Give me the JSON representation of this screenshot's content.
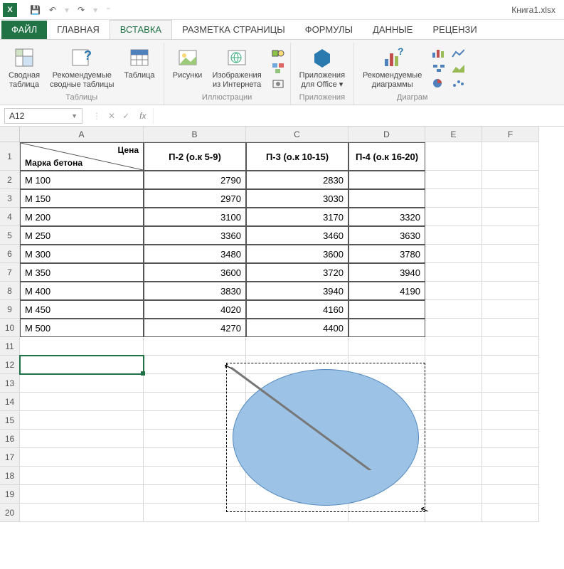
{
  "app": {
    "title": "Книга1.xlsx",
    "accent": "#217346"
  },
  "qat": {
    "save": "💾",
    "undo": "↶",
    "redo": "↷"
  },
  "tabs": {
    "file": "ФАЙЛ",
    "home": "ГЛАВНАЯ",
    "insert": "ВСТАВКА",
    "layout": "РАЗМЕТКА СТРАНИЦЫ",
    "formulas": "ФОРМУЛЫ",
    "data": "ДАННЫЕ",
    "review": "РЕЦЕНЗИ",
    "active": "insert"
  },
  "ribbon": {
    "groups": {
      "tables": {
        "label": "Таблицы",
        "pivot": "Сводная\nтаблица",
        "recpivot": "Рекомендуемые\nсводные таблицы",
        "table": "Таблица"
      },
      "illus": {
        "label": "Иллюстрации",
        "pictures": "Рисунки",
        "online": "Изображения\nиз Интернета"
      },
      "apps": {
        "label": "Приложения",
        "office": "Приложения\nдля Office ▾"
      },
      "charts": {
        "label": "Диаграм",
        "rec": "Рекомендуемые\nдиаграммы"
      }
    }
  },
  "formula_bar": {
    "name_box": "A12",
    "cancel": "✕",
    "enter": "✓",
    "fx": "fx"
  },
  "sheet": {
    "columns": [
      "A",
      "B",
      "C",
      "D",
      "E",
      "F"
    ],
    "row_count": 20,
    "header_row_height": 40,
    "selected_cell": "A12",
    "structure": {
      "type": "table",
      "header_diag": {
        "top": "Цена",
        "bottom": "Марка бетона"
      },
      "column_headers": [
        "П-2 (о.к 5-9)",
        "П-3 (о.к 10-15)",
        "П-4 (о.к 16-20)"
      ],
      "rows": [
        {
          "mark": "М 100",
          "p2": 2790,
          "p3": 2830,
          "p4": null
        },
        {
          "mark": "М 150",
          "p2": 2970,
          "p3": 3030,
          "p4": null
        },
        {
          "mark": "М 200",
          "p2": 3100,
          "p3": 3170,
          "p4": 3320
        },
        {
          "mark": "М 250",
          "p2": 3360,
          "p3": 3460,
          "p4": 3630
        },
        {
          "mark": "М 300",
          "p2": 3480,
          "p3": 3600,
          "p4": 3780
        },
        {
          "mark": "М 350",
          "p2": 3600,
          "p3": 3720,
          "p4": 3940
        },
        {
          "mark": "М 400",
          "p2": 3830,
          "p3": 3940,
          "p4": 4190
        },
        {
          "mark": "М 450",
          "p2": 4020,
          "p3": 4160,
          "p4": null
        },
        {
          "mark": "М 500",
          "p2": 4270,
          "p3": 4400,
          "p4": null
        }
      ],
      "border_color": "#555555",
      "text_color": "#000000",
      "font_size": 13
    },
    "shape": {
      "type": "ellipse",
      "fill": "#9cc2e5",
      "stroke": "#548abf",
      "selection_dash": "#000000",
      "drag_arrow": true
    }
  }
}
